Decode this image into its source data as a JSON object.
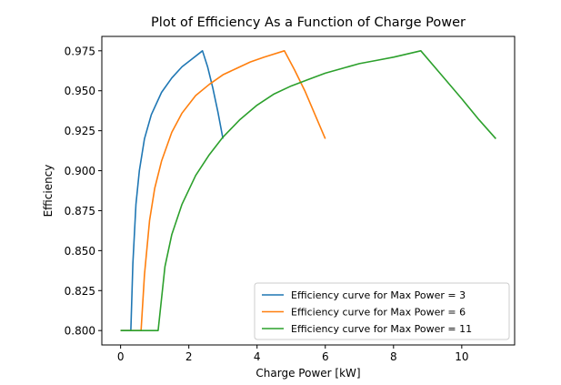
{
  "chart_data": {
    "type": "line",
    "title": "Plot of Efficiency As a Function of Charge Power",
    "xlabel": "Charge Power [kW]",
    "ylabel": "Efficiency",
    "xlim": [
      -0.55,
      11.55
    ],
    "ylim": [
      0.791,
      0.984
    ],
    "x_ticks": [
      0,
      2,
      4,
      6,
      8,
      10
    ],
    "x_tick_labels": [
      "0",
      "2",
      "4",
      "6",
      "8",
      "10"
    ],
    "y_ticks": [
      0.8,
      0.825,
      0.85,
      0.875,
      0.9,
      0.925,
      0.95,
      0.975
    ],
    "y_tick_labels": [
      "0.800",
      "0.825",
      "0.850",
      "0.875",
      "0.900",
      "0.925",
      "0.950",
      "0.975"
    ],
    "grid": false,
    "legend_position": "lower-right",
    "series": [
      {
        "name": "Efficiency curve for Max Power = 3",
        "color": "#1f77b4",
        "x": [
          0,
          0.3,
          0.3,
          0.36,
          0.45,
          0.55,
          0.7,
          0.9,
          1.2,
          1.5,
          1.8,
          2.1,
          2.4,
          2.55,
          2.7,
          2.85,
          3.0
        ],
        "y": [
          0.8,
          0.8,
          0.8,
          0.842,
          0.879,
          0.9,
          0.92,
          0.935,
          0.949,
          0.958,
          0.965,
          0.97,
          0.975,
          0.965,
          0.952,
          0.937,
          0.92
        ]
      },
      {
        "name": "Efficiency curve for Max Power = 6",
        "color": "#ff7f0e",
        "x": [
          0,
          0.6,
          0.6,
          0.7,
          0.85,
          1.0,
          1.2,
          1.5,
          1.8,
          2.2,
          2.6,
          3.0,
          3.4,
          3.8,
          4.2,
          4.8,
          5.1,
          5.4,
          5.7,
          6.0
        ],
        "y": [
          0.8,
          0.8,
          0.8,
          0.835,
          0.869,
          0.889,
          0.906,
          0.924,
          0.936,
          0.947,
          0.954,
          0.96,
          0.964,
          0.968,
          0.971,
          0.975,
          0.963,
          0.95,
          0.935,
          0.92
        ]
      },
      {
        "name": "Efficiency curve for Max Power = 11",
        "color": "#2ca02c",
        "x": [
          0,
          1.1,
          1.1,
          1.3,
          1.5,
          1.8,
          2.2,
          2.6,
          3.0,
          3.5,
          4.0,
          4.5,
          5.0,
          5.5,
          6.0,
          6.5,
          7.0,
          7.5,
          8.0,
          8.8,
          9.4,
          10.0,
          10.5,
          11.0
        ],
        "y": [
          0.8,
          0.8,
          0.8,
          0.84,
          0.86,
          0.879,
          0.897,
          0.91,
          0.921,
          0.932,
          0.941,
          0.948,
          0.953,
          0.957,
          0.961,
          0.964,
          0.967,
          0.969,
          0.971,
          0.975,
          0.96,
          0.945,
          0.932,
          0.92
        ]
      }
    ]
  }
}
